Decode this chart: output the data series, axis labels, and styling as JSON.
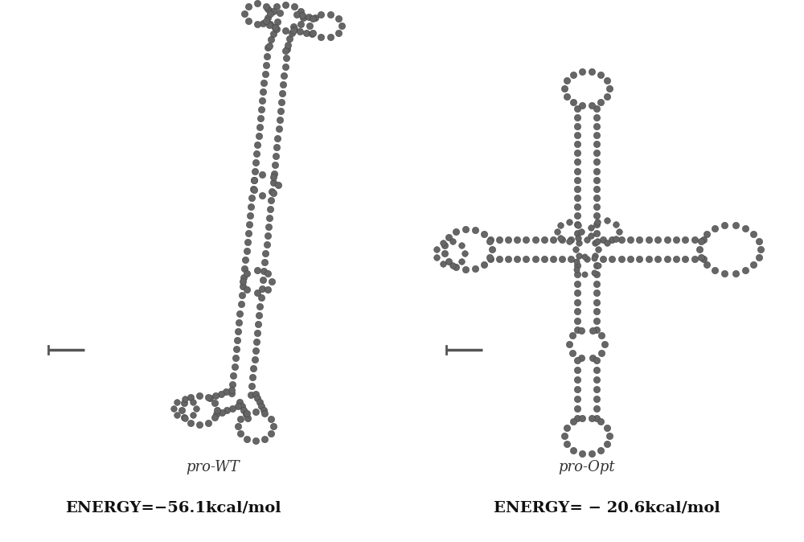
{
  "figure_width": 10.0,
  "figure_height": 6.74,
  "bg_color": "#ffffff",
  "left_label": "pro-WT",
  "right_label": "pro-Opt",
  "left_energy": "ENERGY=−−56.1kcal/mol",
  "right_energy": "ENERGY= − 20.6kcal/mol",
  "left_energy_plain": "ENERGY=−56.1kcal/mol",
  "right_energy_plain": "ENERGY=− 20.6kcal/mol",
  "label_fontsize": 13,
  "energy_fontsize": 14,
  "dot_color": "#666666",
  "dot_edge_color": "#444444",
  "dot_size": 35,
  "scale_bar_color": "#555555"
}
